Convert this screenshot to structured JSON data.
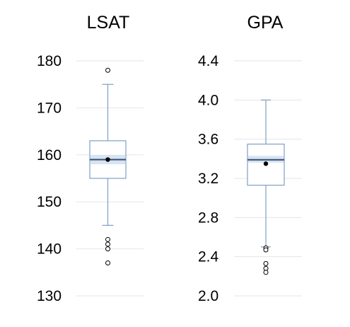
{
  "chart_data": [
    {
      "type": "box",
      "title": "LSAT",
      "ylim": [
        130,
        180
      ],
      "ticks": [
        "180",
        "170",
        "160",
        "150",
        "140",
        "130"
      ],
      "grid": true,
      "box": {
        "whisker_low": 145,
        "q1": 155,
        "median": 159,
        "q3": 163,
        "whisker_high": 175,
        "mean": 159,
        "ci": [
          158,
          160
        ]
      },
      "outliers": [
        178,
        142,
        141,
        140,
        137
      ],
      "colors": {
        "box": "#7f9fc3",
        "ci": "#d9e3f1",
        "grid": "#e6e6e6",
        "mean": "#000000"
      }
    },
    {
      "type": "box",
      "title": "GPA",
      "ylim": [
        2.0,
        4.4
      ],
      "ticks": [
        "4.4",
        "4.0",
        "3.6",
        "3.2",
        "2.8",
        "2.4",
        "2.0"
      ],
      "grid": true,
      "box": {
        "whisker_low": 2.5,
        "q1": 3.13,
        "median": 3.39,
        "q3": 3.55,
        "whisker_high": 4.0,
        "mean": 3.35,
        "ci": [
          3.36,
          3.43
        ]
      },
      "outliers": [
        2.49,
        2.47,
        2.33,
        2.28,
        2.24
      ],
      "colors": {
        "box": "#7f9fc3",
        "ci": "#d9e3f1",
        "grid": "#e6e6e6",
        "mean": "#000000"
      }
    }
  ]
}
